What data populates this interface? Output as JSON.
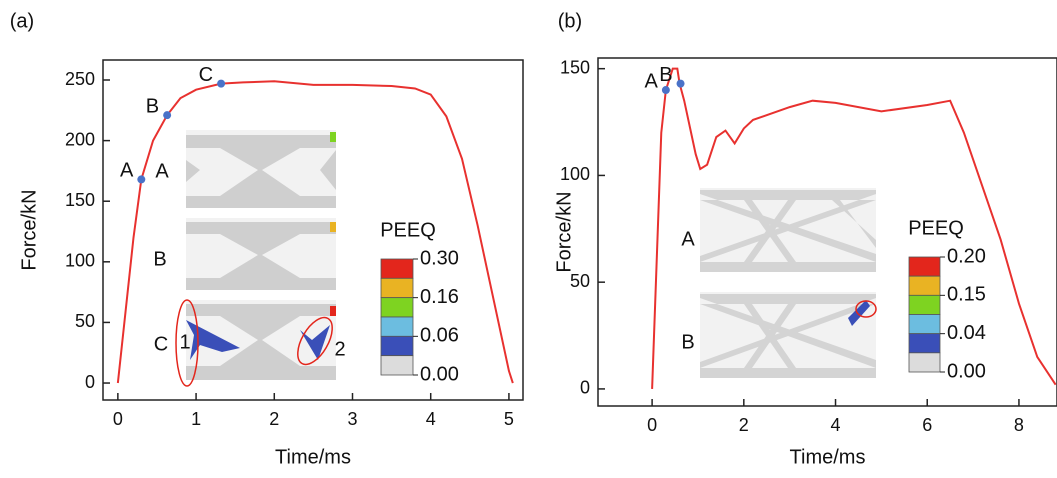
{
  "chart_data": [
    {
      "type": "line",
      "panel_label": "(a)",
      "x_label": "Time/ms",
      "y_label": "Force/kN",
      "color": "#e8312f",
      "x": [
        0,
        0.1,
        0.2,
        0.3,
        0.45,
        0.63,
        0.8,
        1.0,
        1.32,
        1.6,
        2.0,
        2.5,
        3.0,
        3.5,
        3.8,
        4.0,
        4.2,
        4.4,
        4.6,
        4.8,
        5.0,
        5.05
      ],
      "values": [
        0,
        60,
        120,
        168,
        200,
        221,
        235,
        242,
        247,
        248,
        249,
        246,
        246,
        245,
        243,
        238,
        220,
        185,
        130,
        70,
        10,
        0
      ],
      "points": [
        {
          "label": "A",
          "x": 0.3,
          "y": 168
        },
        {
          "label": "B",
          "x": 0.63,
          "y": 221
        },
        {
          "label": "C",
          "x": 1.32,
          "y": 247
        }
      ],
      "point_color": "#4a72c8",
      "xlim": [
        -0.19,
        5.18
      ],
      "ylim": [
        -14,
        266.5
      ],
      "xticks": [
        0,
        1,
        2,
        3,
        4,
        5
      ],
      "yticks": [
        0,
        50,
        100,
        150,
        200,
        250
      ],
      "inset_labels": [
        "A",
        "B",
        "C",
        "1",
        "2"
      ],
      "colorbar": {
        "title": "PEEQ",
        "labels": [
          "0.30",
          "0.16",
          "0.06",
          "0.00"
        ],
        "colors": [
          "#e3261c",
          "#e9b323",
          "#7ed321",
          "#6cbde0",
          "#3a4fb8",
          "#dcdcdc"
        ]
      }
    },
    {
      "type": "line",
      "panel_label": "(b)",
      "x_label": "Time/ms",
      "y_label": "Force/kN",
      "color": "#e8312f",
      "x": [
        0,
        0.1,
        0.2,
        0.3,
        0.45,
        0.55,
        0.6,
        0.7,
        0.8,
        0.95,
        1.05,
        1.2,
        1.4,
        1.6,
        1.8,
        2.0,
        2.2,
        3.0,
        3.5,
        4.0,
        5.0,
        6.0,
        6.5,
        6.8,
        7.2,
        7.6,
        8.0,
        8.4,
        8.8
      ],
      "values": [
        0,
        60,
        120,
        140,
        150,
        150,
        143,
        135,
        125,
        110,
        103,
        105,
        118,
        121,
        115,
        122,
        126,
        132,
        135,
        134,
        130,
        133,
        135,
        120,
        95,
        70,
        40,
        15,
        2
      ],
      "points": [
        {
          "label": "A",
          "x": 0.3,
          "y": 140
        },
        {
          "label": "B",
          "x": 0.62,
          "y": 143
        }
      ],
      "point_color": "#4a72c8",
      "xlim": [
        -1.18,
        8.83
      ],
      "ylim": [
        -8,
        155
      ],
      "xticks": [
        0,
        2,
        4,
        6,
        8
      ],
      "yticks": [
        0,
        50,
        100,
        150
      ],
      "inset_labels": [
        "A",
        "B"
      ],
      "colorbar": {
        "title": "PEEQ",
        "labels": [
          "0.20",
          "0.15",
          "0.04",
          "0.00"
        ],
        "colors": [
          "#e3261c",
          "#e9b323",
          "#7ed321",
          "#6cbde0",
          "#3a4fb8",
          "#dcdcdc"
        ]
      }
    }
  ]
}
